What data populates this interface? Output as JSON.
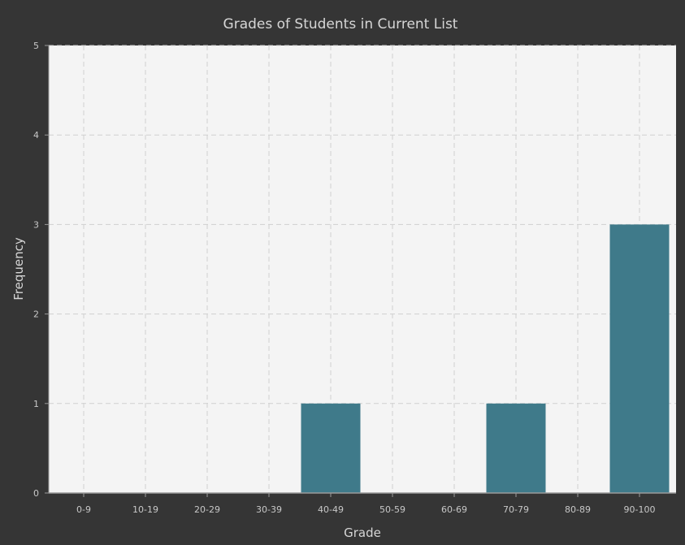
{
  "chart_data": {
    "type": "bar",
    "title": "Grades of Students in Current List",
    "xlabel": "Grade",
    "ylabel": "Frequency",
    "categories": [
      "0-9",
      "10-19",
      "20-29",
      "30-39",
      "40-49",
      "50-59",
      "60-69",
      "70-79",
      "80-89",
      "90-100"
    ],
    "values": [
      0,
      0,
      0,
      0,
      1,
      0,
      0,
      1,
      0,
      3
    ],
    "ylim": [
      0,
      5
    ],
    "yticks": [
      "0",
      "1",
      "2",
      "3",
      "4",
      "5"
    ],
    "grid": true,
    "legend": "none",
    "colors": {
      "background": "#353535",
      "plot_background": "#f4f4f4",
      "bar": "#3f7a8a",
      "grid": "#d0d0d0",
      "text": "#d6d6d6"
    }
  }
}
